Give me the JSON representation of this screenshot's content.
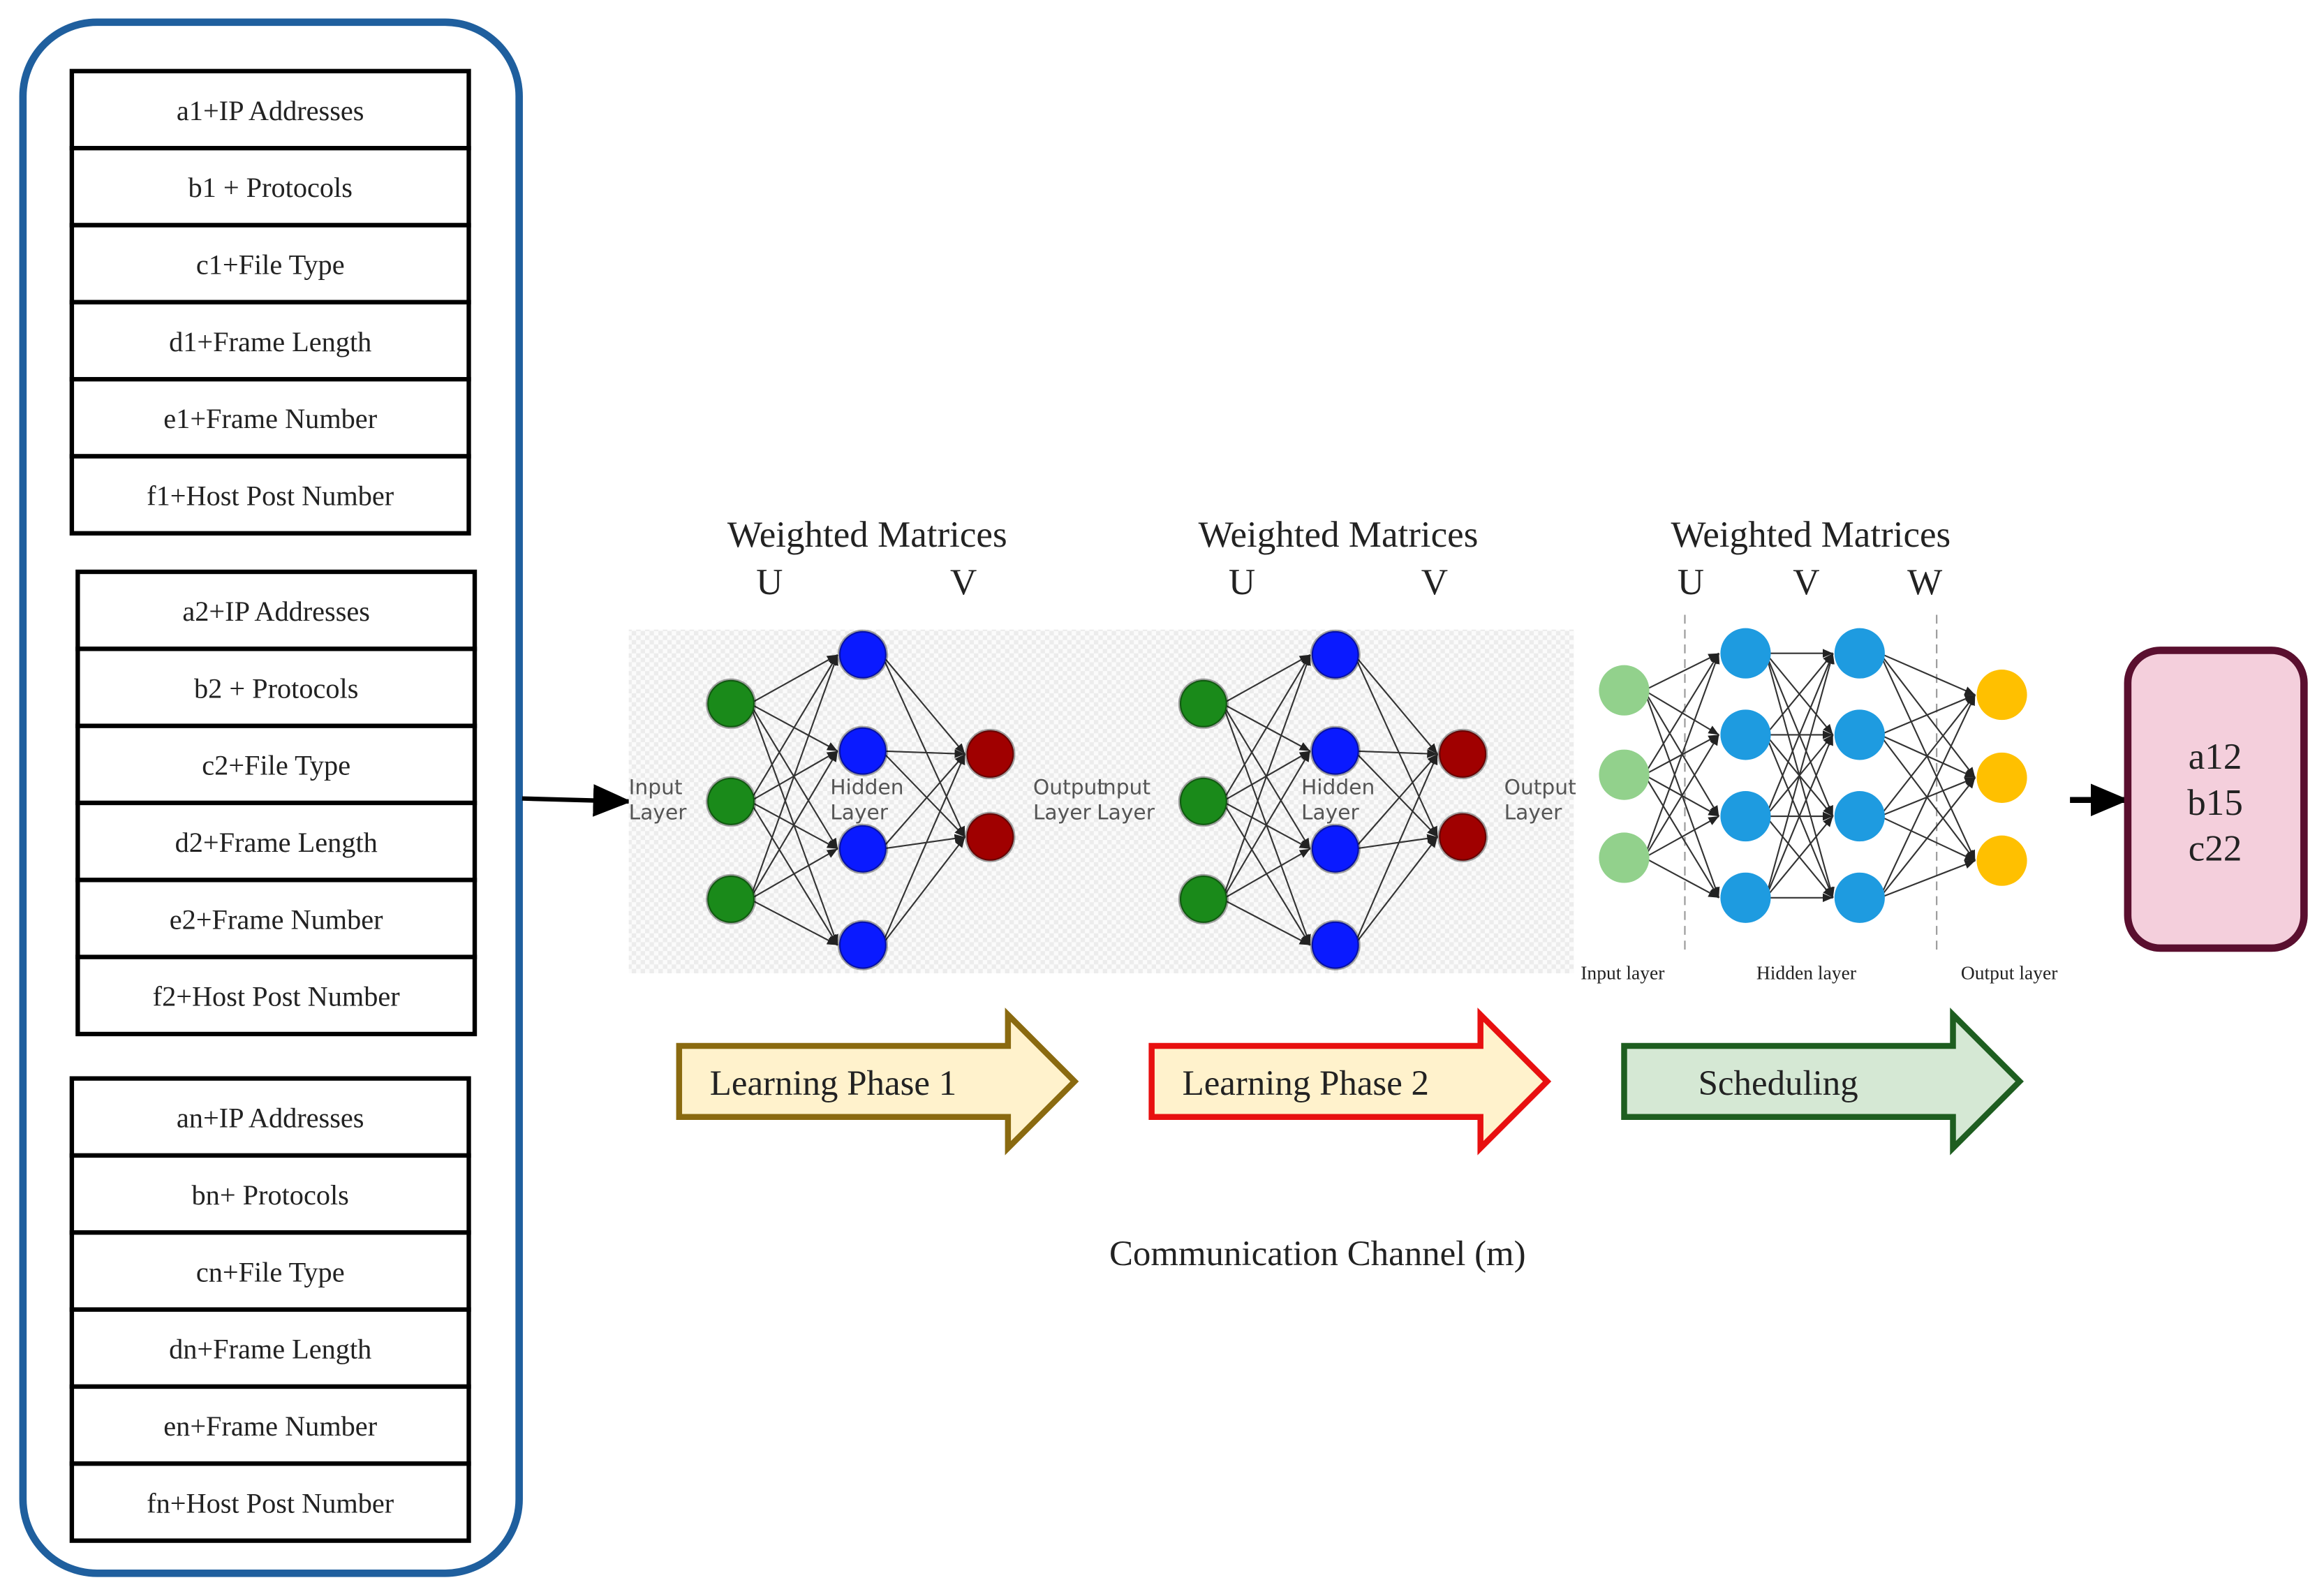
{
  "input_groups": [
    {
      "rows": [
        "a1+IP Addresses",
        "b1 + Protocols",
        "c1+File Type",
        "d1+Frame Length",
        "e1+Frame Number",
        "f1+Host Post Number"
      ]
    },
    {
      "rows": [
        "a2+IP Addresses",
        "b2 + Protocols",
        "c2+File Type",
        "d2+Frame Length",
        "e2+Frame Number",
        "f2+Host Post Number"
      ]
    },
    {
      "rows": [
        "an+IP Addresses",
        "bn+ Protocols",
        "cn+File Type",
        "dn+Frame Length",
        "en+Frame Number",
        "fn+Host Post Number"
      ]
    }
  ],
  "networks": [
    {
      "heading": "Weighted Matrices",
      "matrices": [
        "U",
        "V"
      ],
      "labels": {
        "input": [
          "Input",
          "Layer"
        ],
        "hidden": [
          "Hidden",
          "Layer"
        ],
        "output": [
          "Output",
          "Layer"
        ]
      },
      "layers": [
        3,
        4,
        2
      ],
      "colors": [
        "#1a8a1a",
        "#0a1aff",
        "#a00000"
      ]
    },
    {
      "heading": "Weighted Matrices",
      "matrices": [
        "U",
        "V"
      ],
      "labels": {
        "input": [
          "Input",
          "Layer"
        ],
        "hidden": [
          "Hidden",
          "Layer"
        ],
        "output": [
          "Output",
          "Layer"
        ]
      },
      "layers": [
        3,
        4,
        2
      ],
      "colors": [
        "#1a8a1a",
        "#0a1aff",
        "#a00000"
      ]
    },
    {
      "heading": "Weighted Matrices",
      "matrices": [
        "U",
        "V",
        "W"
      ],
      "labels": {
        "input": "Input layer",
        "hidden": "Hidden layer",
        "output": "Output layer"
      },
      "layers": [
        3,
        4,
        4,
        3
      ],
      "colors": [
        "#92d18c",
        "#1e9be0",
        "#1e9be0",
        "#ffc000"
      ]
    }
  ],
  "phases": [
    {
      "label": "Learning Phase 1",
      "fill": "#fff2cc",
      "stroke": "#8a6a10"
    },
    {
      "label": "Learning Phase 2",
      "fill": "#fff2cc",
      "stroke": "#e81010"
    },
    {
      "label": "Scheduling",
      "fill": "#d5e8d4",
      "stroke": "#1e5e20"
    }
  ],
  "output_box": {
    "lines": [
      "a12",
      "b15",
      "c22"
    ],
    "fill": "#f4cfdc",
    "stroke": "#5a0f2f"
  },
  "caption": "Communication Channel (m)"
}
